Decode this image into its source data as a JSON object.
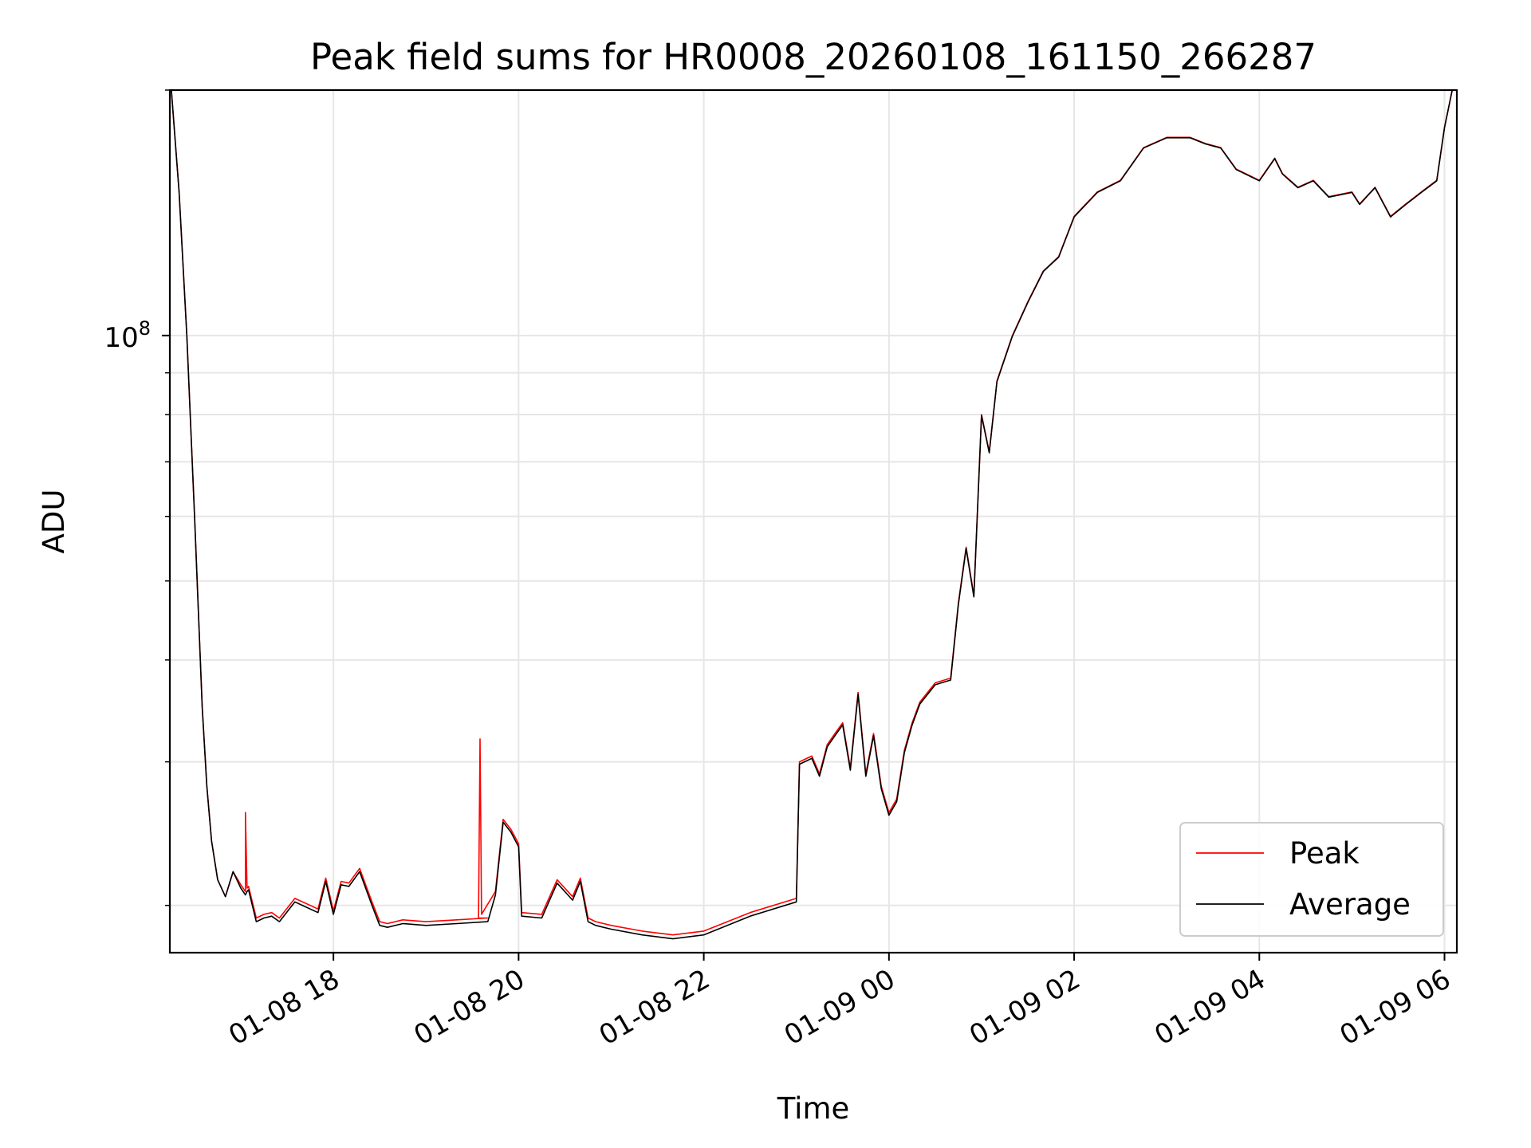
{
  "chart_data": {
    "type": "line",
    "title": "Peak field sums for HR0008_20260108_161150_266287",
    "xlabel": "Time",
    "ylabel": "ADU",
    "yscale": "log",
    "grid": true,
    "legend_position": "lower-right",
    "xlim": [
      "2026-01-08 16:14",
      "2026-01-09 06:08"
    ],
    "ylim": [
      17500000,
      200000000
    ],
    "x_tick_labels": [
      "01-08 18",
      "01-08 20",
      "01-08 22",
      "01-09 00",
      "01-09 02",
      "01-09 04",
      "01-09 06"
    ],
    "x_tick_values": [
      "2026-01-08 18:00",
      "2026-01-08 20:00",
      "2026-01-08 22:00",
      "2026-01-09 00:00",
      "2026-01-09 02:00",
      "2026-01-09 04:00",
      "2026-01-09 06:00"
    ],
    "y_tick_labels": [
      {
        "base": "10",
        "exp": "8"
      }
    ],
    "y_tick_values": [
      100000000
    ],
    "y_minor_tick_values": [
      20000000,
      30000000,
      40000000,
      50000000,
      60000000,
      70000000,
      80000000,
      90000000,
      200000000
    ],
    "series": [
      {
        "name": "Peak",
        "color": "#ff0000",
        "x": [
          "2026-01-08 16:15",
          "2026-01-08 16:20",
          "2026-01-08 16:25",
          "2026-01-08 16:30",
          "2026-01-08 16:35",
          "2026-01-08 16:38",
          "2026-01-08 16:41",
          "2026-01-08 16:45",
          "2026-01-08 16:50",
          "2026-01-08 16:55",
          "2026-01-08 17:00",
          "2026-01-08 17:03",
          "2026-01-08 17:03",
          "2026-01-08 17:04",
          "2026-01-08 17:05",
          "2026-01-08 17:10",
          "2026-01-08 17:15",
          "2026-01-08 17:20",
          "2026-01-08 17:25",
          "2026-01-08 17:35",
          "2026-01-08 17:50",
          "2026-01-08 17:55",
          "2026-01-08 18:00",
          "2026-01-08 18:05",
          "2026-01-08 18:10",
          "2026-01-08 18:17",
          "2026-01-08 18:25",
          "2026-01-08 18:30",
          "2026-01-08 18:35",
          "2026-01-08 18:45",
          "2026-01-08 19:00",
          "2026-01-08 19:20",
          "2026-01-08 19:40",
          "2026-01-08 19:34",
          "2026-01-08 19:35",
          "2026-01-08 19:36",
          "2026-01-08 19:45",
          "2026-01-08 19:50",
          "2026-01-08 19:55",
          "2026-01-08 20:00",
          "2026-01-08 20:02",
          "2026-01-08 20:15",
          "2026-01-08 20:25",
          "2026-01-08 20:35",
          "2026-01-08 20:40",
          "2026-01-08 20:45",
          "2026-01-08 20:50",
          "2026-01-08 21:00",
          "2026-01-08 21:20",
          "2026-01-08 21:40",
          "2026-01-08 22:00",
          "2026-01-08 22:30",
          "2026-01-08 23:00",
          "2026-01-08 23:02",
          "2026-01-08 23:10",
          "2026-01-08 23:15",
          "2026-01-08 23:20",
          "2026-01-08 23:25",
          "2026-01-08 23:30",
          "2026-01-08 23:35",
          "2026-01-08 23:40",
          "2026-01-08 23:45",
          "2026-01-08 23:50",
          "2026-01-08 23:55",
          "2026-01-09 00:00",
          "2026-01-09 00:05",
          "2026-01-09 00:10",
          "2026-01-09 00:15",
          "2026-01-09 00:20",
          "2026-01-09 00:30",
          "2026-01-09 00:40",
          "2026-01-09 00:45",
          "2026-01-09 00:50",
          "2026-01-09 00:55",
          "2026-01-09 01:00",
          "2026-01-09 01:05",
          "2026-01-09 01:10",
          "2026-01-09 01:20",
          "2026-01-09 01:30",
          "2026-01-09 01:40",
          "2026-01-09 01:50",
          "2026-01-09 02:00",
          "2026-01-09 02:15",
          "2026-01-09 02:30",
          "2026-01-09 02:45",
          "2026-01-09 03:00",
          "2026-01-09 03:15",
          "2026-01-09 03:25",
          "2026-01-09 03:35",
          "2026-01-09 03:45",
          "2026-01-09 04:00",
          "2026-01-09 04:10",
          "2026-01-09 04:15",
          "2026-01-09 04:25",
          "2026-01-09 04:35",
          "2026-01-09 04:45",
          "2026-01-09 05:00",
          "2026-01-09 05:05",
          "2026-01-09 05:15",
          "2026-01-09 05:25",
          "2026-01-09 05:35",
          "2026-01-09 05:45",
          "2026-01-09 05:55",
          "2026-01-09 06:00",
          "2026-01-09 06:05"
        ],
        "values": [
          200000000,
          150000000,
          100000000,
          60000000,
          35000000,
          28000000,
          24000000,
          21500000,
          20500000,
          22000000,
          21200000,
          20800000,
          26000000,
          21000000,
          21100000,
          19300000,
          19500000,
          19600000,
          19300000,
          20400000,
          19800000,
          21600000,
          19700000,
          21400000,
          21300000,
          22200000,
          20200000,
          19100000,
          19000000,
          19200000,
          19100000,
          19200000,
          19300000,
          19300000,
          32000000,
          19500000,
          20800000,
          25500000,
          24800000,
          23800000,
          19600000,
          19500000,
          21500000,
          20500000,
          21600000,
          19300000,
          19100000,
          18900000,
          18600000,
          18400000,
          18600000,
          19600000,
          20400000,
          30000000,
          30500000,
          29000000,
          31500000,
          32500000,
          33500000,
          29500000,
          36500000,
          29000000,
          32500000,
          28000000,
          26000000,
          27000000,
          31000000,
          33500000,
          35500000,
          37500000,
          38000000,
          47000000,
          55000000,
          48000000,
          80000000,
          72000000,
          88000000,
          100000000,
          110000000,
          120000000,
          125000000,
          140000000,
          150000000,
          155000000,
          170000000,
          175000000,
          175000000,
          172000000,
          170000000,
          160000000,
          155000000,
          165000000,
          158000000,
          152000000,
          155000000,
          148000000,
          150000000,
          145000000,
          152000000,
          140000000,
          145000000,
          150000000,
          155000000,
          180000000,
          200000000
        ]
      },
      {
        "name": "Average",
        "color": "#000000",
        "x": [
          "2026-01-08 16:15",
          "2026-01-08 16:20",
          "2026-01-08 16:25",
          "2026-01-08 16:30",
          "2026-01-08 16:35",
          "2026-01-08 16:38",
          "2026-01-08 16:41",
          "2026-01-08 16:45",
          "2026-01-08 16:50",
          "2026-01-08 16:55",
          "2026-01-08 17:00",
          "2026-01-08 17:03",
          "2026-01-08 17:04",
          "2026-01-08 17:05",
          "2026-01-08 17:10",
          "2026-01-08 17:15",
          "2026-01-08 17:20",
          "2026-01-08 17:25",
          "2026-01-08 17:35",
          "2026-01-08 17:50",
          "2026-01-08 17:55",
          "2026-01-08 18:00",
          "2026-01-08 18:05",
          "2026-01-08 18:10",
          "2026-01-08 18:17",
          "2026-01-08 18:25",
          "2026-01-08 18:30",
          "2026-01-08 18:35",
          "2026-01-08 18:45",
          "2026-01-08 19:00",
          "2026-01-08 19:20",
          "2026-01-08 19:40",
          "2026-01-08 19:45",
          "2026-01-08 19:50",
          "2026-01-08 19:55",
          "2026-01-08 20:00",
          "2026-01-08 20:02",
          "2026-01-08 20:15",
          "2026-01-08 20:25",
          "2026-01-08 20:35",
          "2026-01-08 20:40",
          "2026-01-08 20:45",
          "2026-01-08 20:50",
          "2026-01-08 21:00",
          "2026-01-08 21:20",
          "2026-01-08 21:40",
          "2026-01-08 22:00",
          "2026-01-08 22:30",
          "2026-01-08 23:00",
          "2026-01-08 23:02",
          "2026-01-08 23:10",
          "2026-01-08 23:15",
          "2026-01-08 23:20",
          "2026-01-08 23:25",
          "2026-01-08 23:30",
          "2026-01-08 23:35",
          "2026-01-08 23:40",
          "2026-01-08 23:45",
          "2026-01-08 23:50",
          "2026-01-08 23:55",
          "2026-01-09 00:00",
          "2026-01-09 00:05",
          "2026-01-09 00:10",
          "2026-01-09 00:15",
          "2026-01-09 00:20",
          "2026-01-09 00:30",
          "2026-01-09 00:40",
          "2026-01-09 00:45",
          "2026-01-09 00:50",
          "2026-01-09 00:55",
          "2026-01-09 01:00",
          "2026-01-09 01:05",
          "2026-01-09 01:10",
          "2026-01-09 01:20",
          "2026-01-09 01:30",
          "2026-01-09 01:40",
          "2026-01-09 01:50",
          "2026-01-09 02:00",
          "2026-01-09 02:15",
          "2026-01-09 02:30",
          "2026-01-09 02:45",
          "2026-01-09 03:00",
          "2026-01-09 03:15",
          "2026-01-09 03:25",
          "2026-01-09 03:35",
          "2026-01-09 03:45",
          "2026-01-09 04:00",
          "2026-01-09 04:10",
          "2026-01-09 04:15",
          "2026-01-09 04:25",
          "2026-01-09 04:35",
          "2026-01-09 04:45",
          "2026-01-09 05:00",
          "2026-01-09 05:05",
          "2026-01-09 05:15",
          "2026-01-09 05:25",
          "2026-01-09 05:35",
          "2026-01-09 05:45",
          "2026-01-09 05:55",
          "2026-01-09 06:00",
          "2026-01-09 06:05"
        ],
        "values": [
          200000000,
          150000000,
          100000000,
          60000000,
          35000000,
          28000000,
          24000000,
          21500000,
          20500000,
          22000000,
          21000000,
          20600000,
          20800000,
          20900000,
          19100000,
          19300000,
          19400000,
          19100000,
          20200000,
          19600000,
          21400000,
          19500000,
          21200000,
          21100000,
          22000000,
          20000000,
          18900000,
          18800000,
          19000000,
          18900000,
          19000000,
          19100000,
          20600000,
          25300000,
          24600000,
          23600000,
          19400000,
          19300000,
          21300000,
          20300000,
          21400000,
          19100000,
          18900000,
          18700000,
          18400000,
          18200000,
          18400000,
          19400000,
          20200000,
          29800000,
          30300000,
          28800000,
          31300000,
          32300000,
          33300000,
          29300000,
          36300000,
          28800000,
          32300000,
          27800000,
          25800000,
          26800000,
          30800000,
          33300000,
          35300000,
          37300000,
          37800000,
          46800000,
          54800000,
          47800000,
          79800000,
          71800000,
          87800000,
          99800000,
          109800000,
          119800000,
          124800000,
          139800000,
          149800000,
          154800000,
          169800000,
          174800000,
          174800000,
          171800000,
          169800000,
          159800000,
          154800000,
          164800000,
          157800000,
          151800000,
          154800000,
          147800000,
          149800000,
          144800000,
          151800000,
          139800000,
          144800000,
          149800000,
          154800000,
          179800000,
          200000000
        ]
      }
    ]
  }
}
